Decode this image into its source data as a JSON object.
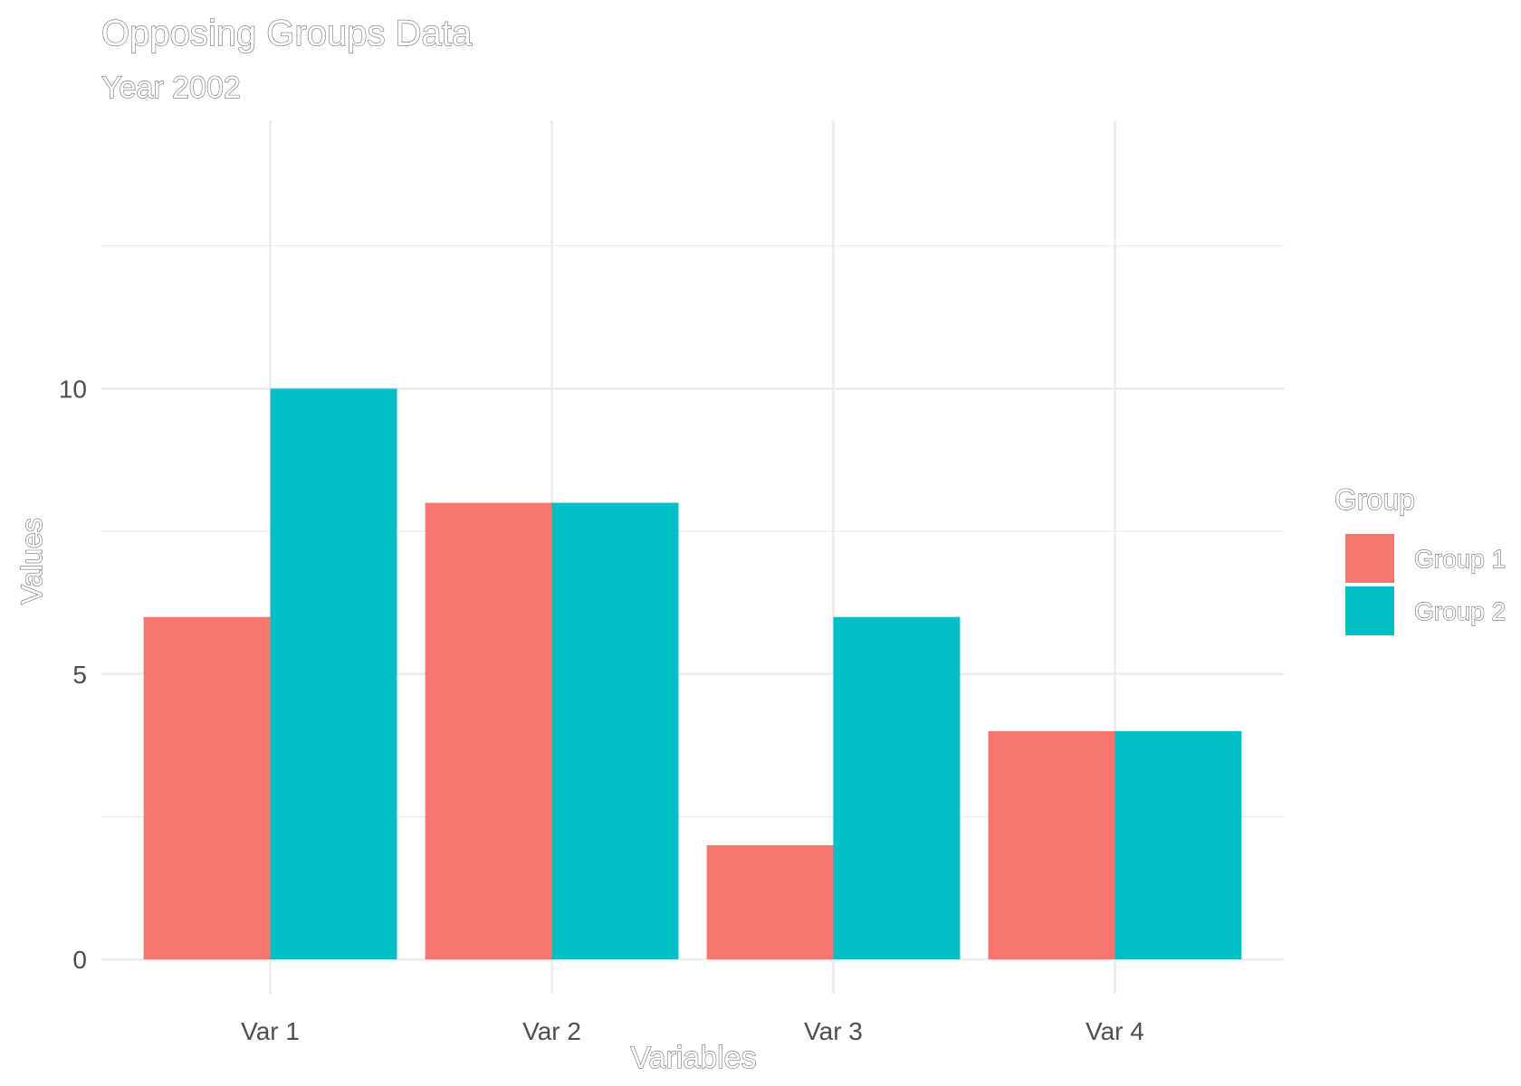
{
  "chart_data": {
    "type": "bar",
    "title": "Opposing Groups Data",
    "subtitle": "Year 2002",
    "xlabel": "Variables",
    "ylabel": "Values",
    "categories": [
      "Var 1",
      "Var 2",
      "Var 3",
      "Var 4"
    ],
    "series": [
      {
        "name": "Group 1",
        "color": "#F8766D",
        "values": [
          6,
          8,
          2,
          4
        ]
      },
      {
        "name": "Group 2",
        "color": "#00BFC4",
        "values": [
          10,
          8,
          6,
          4
        ]
      }
    ],
    "ylim": [
      -0.6,
      14.7
    ],
    "y_ticks": [
      0,
      5,
      10
    ],
    "y_tick_labels": [
      "0",
      "5",
      "10"
    ],
    "legend": {
      "title": "Group",
      "position": "right",
      "entries": [
        "Group 1",
        "Group 2"
      ]
    },
    "grid": true,
    "grid_color": "#ebebeb",
    "background": "#ffffff",
    "bar_layout": "dodge"
  }
}
